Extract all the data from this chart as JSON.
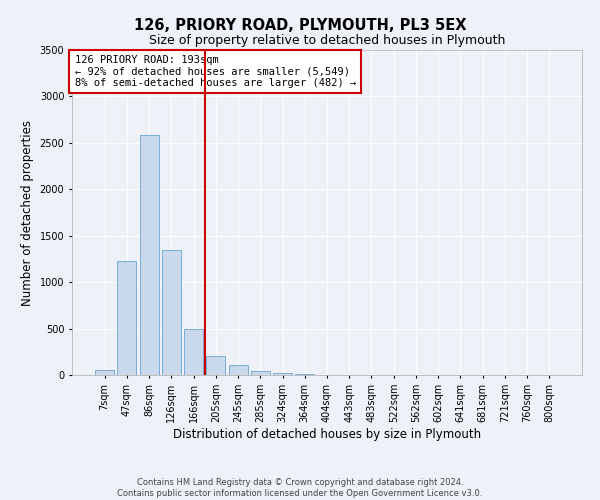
{
  "title": "126, PRIORY ROAD, PLYMOUTH, PL3 5EX",
  "subtitle": "Size of property relative to detached houses in Plymouth",
  "xlabel": "Distribution of detached houses by size in Plymouth",
  "ylabel": "Number of detached properties",
  "bar_labels": [
    "7sqm",
    "47sqm",
    "86sqm",
    "126sqm",
    "166sqm",
    "205sqm",
    "245sqm",
    "285sqm",
    "324sqm",
    "364sqm",
    "404sqm",
    "443sqm",
    "483sqm",
    "522sqm",
    "562sqm",
    "602sqm",
    "641sqm",
    "681sqm",
    "721sqm",
    "760sqm",
    "800sqm"
  ],
  "bar_values": [
    50,
    1230,
    2590,
    1350,
    500,
    200,
    110,
    45,
    20,
    10,
    5,
    3,
    2,
    0,
    0,
    0,
    0,
    0,
    0,
    0,
    0
  ],
  "bar_color": "#c9d9eb",
  "bar_edgecolor": "#7aaed6",
  "vline_color": "#cc0000",
  "annotation_text": "126 PRIORY ROAD: 193sqm\n← 92% of detached houses are smaller (5,549)\n8% of semi-detached houses are larger (482) →",
  "annotation_box_color": "#ffffff",
  "annotation_box_edgecolor": "#cc0000",
  "ylim": [
    0,
    3500
  ],
  "yticks": [
    0,
    500,
    1000,
    1500,
    2000,
    2500,
    3000,
    3500
  ],
  "footnote": "Contains HM Land Registry data © Crown copyright and database right 2024.\nContains public sector information licensed under the Open Government Licence v3.0.",
  "bg_color": "#eef2f8",
  "grid_color": "#ffffff",
  "title_fontsize": 10.5,
  "subtitle_fontsize": 9,
  "axis_label_fontsize": 8.5,
  "tick_fontsize": 7,
  "annotation_fontsize": 7.5,
  "footnote_fontsize": 6
}
